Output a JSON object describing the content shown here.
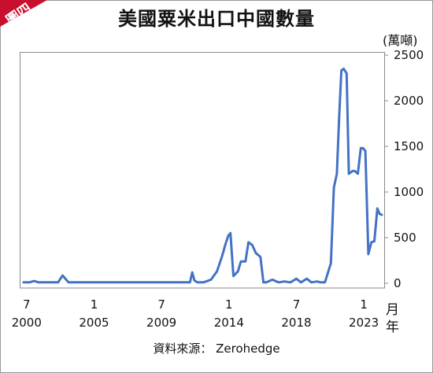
{
  "badge": {
    "label": "圖四",
    "color": "#c8102e"
  },
  "title": "美國粟米出口中國數量",
  "unit": "(萬噸)",
  "x_suffix_top": "月",
  "x_suffix_bottom": "年",
  "source": "資料來源： Zerohedge",
  "chart_data": {
    "type": "line",
    "title": "美國粟米出口中國數量",
    "ylabel": "(萬噸)",
    "ylim": [
      0,
      2500
    ],
    "yticks": [
      0,
      500,
      1000,
      1500,
      2000,
      2500
    ],
    "y_axis_side": "right",
    "grid": false,
    "line_color": "#4472c4",
    "x_ticks": [
      {
        "x": 2000.5,
        "month": "7",
        "year": "2000"
      },
      {
        "x": 2005.0,
        "month": "1",
        "year": "2005"
      },
      {
        "x": 2009.5,
        "month": "7",
        "year": "2009"
      },
      {
        "x": 2014.0,
        "month": "1",
        "year": "2014"
      },
      {
        "x": 2018.5,
        "month": "7",
        "year": "2018"
      },
      {
        "x": 2023.0,
        "month": "1",
        "year": "2023"
      }
    ],
    "xlim": [
      2000.3,
      2024.2
    ],
    "series": [
      {
        "name": "",
        "x": [
          2000.3,
          2000.7,
          2001.0,
          2001.3,
          2002.6,
          2002.9,
          2003.3,
          2005.0,
          2007.0,
          2009.0,
          2010.0,
          2011.4,
          2011.55,
          2011.7,
          2011.9,
          2012.3,
          2012.8,
          2013.2,
          2013.55,
          2013.75,
          2013.95,
          2014.1,
          2014.3,
          2014.6,
          2014.8,
          2015.1,
          2015.3,
          2015.55,
          2015.8,
          2016.1,
          2016.3,
          2016.5,
          2016.9,
          2017.3,
          2017.7,
          2018.1,
          2018.5,
          2018.8,
          2019.2,
          2019.5,
          2019.9,
          2020.1,
          2020.4,
          2020.8,
          2021.0,
          2021.2,
          2021.35,
          2021.5,
          2021.65,
          2021.85,
          2022.0,
          2022.25,
          2022.4,
          2022.6,
          2022.8,
          2022.95,
          2023.1,
          2023.3,
          2023.5,
          2023.7,
          2023.9,
          2024.05,
          2024.2
        ],
        "values": [
          10,
          10,
          25,
          10,
          10,
          85,
          10,
          10,
          10,
          10,
          10,
          10,
          120,
          30,
          10,
          10,
          40,
          130,
          300,
          420,
          520,
          550,
          80,
          130,
          240,
          240,
          450,
          420,
          330,
          290,
          10,
          10,
          40,
          10,
          20,
          10,
          50,
          10,
          50,
          10,
          20,
          10,
          10,
          220,
          1050,
          1200,
          1800,
          2330,
          2350,
          2300,
          1200,
          1230,
          1230,
          1200,
          1480,
          1480,
          1450,
          320,
          450,
          460,
          820,
          760,
          750
        ]
      }
    ]
  }
}
